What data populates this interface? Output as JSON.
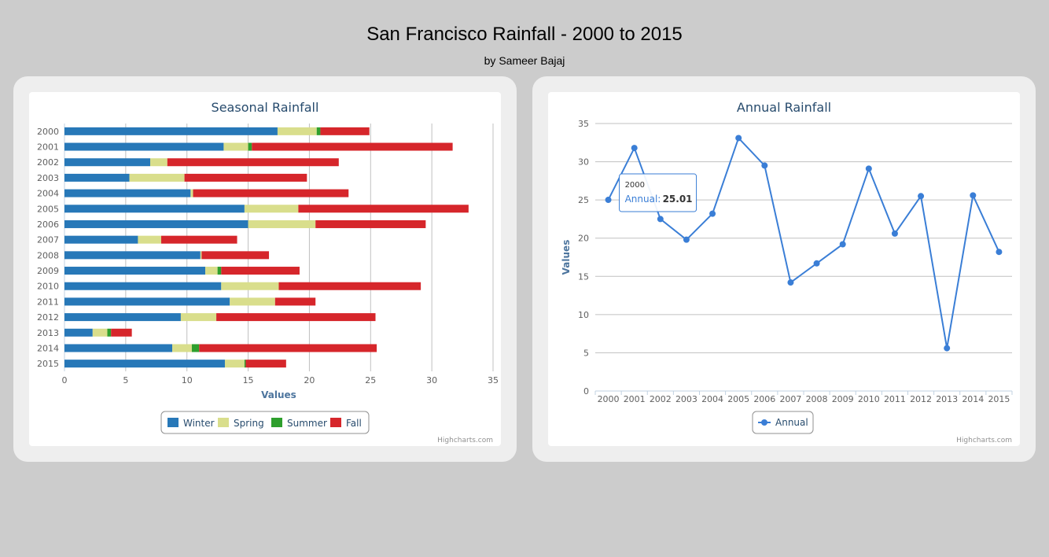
{
  "page": {
    "title": "San Francisco Rainfall - 2000 to 2015",
    "subtitle": "by Sameer Bajaj"
  },
  "chart_data": [
    {
      "type": "bar",
      "orientation": "horizontal",
      "stacked": true,
      "title": "Seasonal Rainfall",
      "xlabel": "",
      "ylabel": "Values",
      "categories": [
        "2000",
        "2001",
        "2002",
        "2003",
        "2004",
        "2005",
        "2006",
        "2007",
        "2008",
        "2009",
        "2010",
        "2011",
        "2012",
        "2013",
        "2014",
        "2015"
      ],
      "series": [
        {
          "name": "Winter",
          "color": "#2778b8",
          "values": [
            17.4,
            13.0,
            7.0,
            5.3,
            10.3,
            14.7,
            15.0,
            6.0,
            11.1,
            11.5,
            12.8,
            13.5,
            9.5,
            2.3,
            8.8,
            13.1
          ]
        },
        {
          "name": "Spring",
          "color": "#d9de8c",
          "values": [
            3.2,
            2.0,
            1.4,
            4.5,
            0.2,
            4.4,
            5.5,
            1.9,
            0.1,
            1.0,
            4.7,
            3.7,
            2.9,
            1.2,
            1.6,
            1.6
          ]
        },
        {
          "name": "Summer",
          "color": "#2e9f2d",
          "values": [
            0.3,
            0.3,
            0.0,
            0.0,
            0.0,
            0.0,
            0.0,
            0.0,
            0.0,
            0.3,
            0.0,
            0.0,
            0.0,
            0.3,
            0.6,
            0.1
          ]
        },
        {
          "name": "Fall",
          "color": "#d6262b",
          "values": [
            4.0,
            16.4,
            14.0,
            10.0,
            12.7,
            13.9,
            9.0,
            6.2,
            5.5,
            6.4,
            11.6,
            3.3,
            13.0,
            1.7,
            14.5,
            3.3
          ]
        }
      ],
      "xlim": [
        0,
        35
      ],
      "xticks": [
        "0",
        "5",
        "10",
        "15",
        "20",
        "25",
        "30",
        "35"
      ],
      "grid": true,
      "legend_position": "bottom-center",
      "credits": "Highcharts.com"
    },
    {
      "type": "line",
      "title": "Annual Rainfall",
      "xlabel": "",
      "ylabel": "Values",
      "x": [
        "2000",
        "2001",
        "2002",
        "2003",
        "2004",
        "2005",
        "2006",
        "2007",
        "2008",
        "2009",
        "2010",
        "2011",
        "2012",
        "2013",
        "2014",
        "2015"
      ],
      "series": [
        {
          "name": "Annual",
          "color": "#3a7ed6",
          "values": [
            25.01,
            31.8,
            22.5,
            19.8,
            23.2,
            33.1,
            29.5,
            14.2,
            16.7,
            19.2,
            29.1,
            20.6,
            25.5,
            5.6,
            25.6,
            18.2
          ]
        }
      ],
      "ylim": [
        0,
        35
      ],
      "yticks": [
        "0",
        "5",
        "10",
        "15",
        "20",
        "25",
        "30",
        "35"
      ],
      "grid": true,
      "legend_position": "bottom-center",
      "credits": "Highcharts.com",
      "tooltip": {
        "category": "2000",
        "series": "Annual",
        "value_text": "25.01"
      }
    }
  ]
}
